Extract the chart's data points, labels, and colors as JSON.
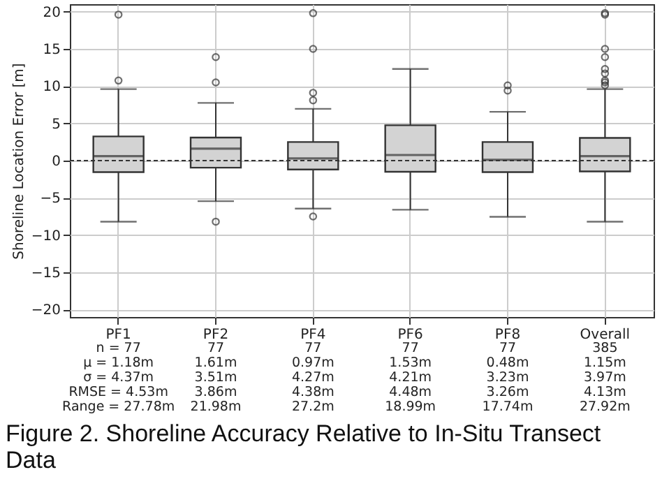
{
  "chart_data": {
    "type": "box",
    "ylabel": "Shoreline Location Error [m]",
    "categories": [
      "PF1",
      "PF2",
      "PF4",
      "PF6",
      "PF8",
      "Overall"
    ],
    "boxes": [
      {
        "low": -8.2,
        "q1": -1.55,
        "median": 0.6,
        "q3": 3.25,
        "high": 9.6,
        "outliers": [
          19.6,
          10.75
        ]
      },
      {
        "low": -5.45,
        "q1": -0.95,
        "median": 1.6,
        "q3": 3.1,
        "high": 7.75,
        "outliers": [
          13.9,
          10.5,
          -8.2
        ]
      },
      {
        "low": -6.45,
        "q1": -1.2,
        "median": 0.3,
        "q3": 2.5,
        "high": 6.95,
        "outliers": [
          19.8,
          15,
          9.1,
          8.1,
          -7.5
        ]
      },
      {
        "low": -6.6,
        "q1": -1.5,
        "median": 0.75,
        "q3": 4.75,
        "high": 12.3
      },
      {
        "low": -7.55,
        "q1": -1.55,
        "median": 0.1,
        "q3": 2.5,
        "high": 6.55,
        "outliers": [
          10.1,
          9.4
        ]
      },
      {
        "low": -8.2,
        "q1": -1.45,
        "median": 0.6,
        "q3": 3.05,
        "high": 9.6,
        "outliers": [
          19.8,
          19.6,
          15,
          13.9,
          12.3,
          11.7,
          10.75,
          10.5,
          10.1
        ]
      }
    ],
    "color": "#d3d3d3",
    "ylim": [
      -21,
      21
    ],
    "yticks": [
      -20,
      -15,
      -10,
      -5,
      0,
      5,
      10,
      15,
      20
    ],
    "grid": true,
    "marker": "circle",
    "ref_lines": [
      {
        "axis": "y",
        "value": 0,
        "line_style": "dashed",
        "color": "#333333"
      }
    ],
    "annotations": [
      "n = 77",
      "77",
      "77",
      "77",
      "77",
      "385",
      "μ = 1.18m",
      "1.61m",
      "0.97m",
      "1.53m",
      "0.48m",
      "1.15m",
      "σ = 4.37m",
      "3.51m",
      "4.27m",
      "4.21m",
      "3.23m",
      "3.97m",
      "RMSE = 4.53m",
      "3.86m",
      "4.38m",
      "4.48m",
      "3.26m",
      "4.13m",
      "Range = 27.78m",
      "21.98m",
      "27.2m",
      "18.99m",
      "17.74m",
      "27.92m"
    ],
    "title": "Figure 2. Shoreline Accuracy Relative to In-Situ Transect Data"
  }
}
